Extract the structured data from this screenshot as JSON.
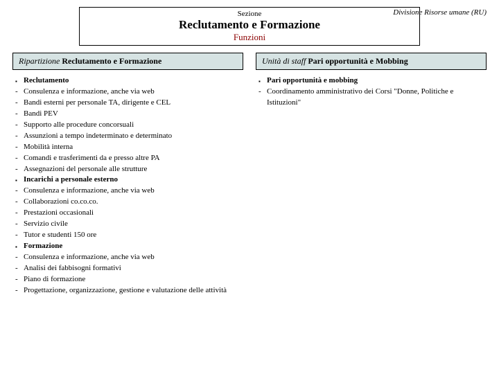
{
  "division_label": "Divisione Risorse umane (RU)",
  "header": {
    "supr": "Sezione",
    "main": "Reclutamento e Formazione",
    "sub": "Funzioni"
  },
  "colors": {
    "col_header_bg": "#d6e3e3",
    "sub_header_color": "#8b0000",
    "border": "#000000",
    "text": "#000000",
    "background": "#ffffff"
  },
  "left": {
    "title_prefix": "Ripartizione ",
    "title_bold": "Reclutamento e Formazione",
    "items": [
      {
        "type": "header",
        "text": "Reclutamento"
      },
      {
        "type": "sub",
        "text": "Consulenza e informazione, anche via web"
      },
      {
        "type": "sub",
        "text": "Bandi esterni per personale TA, dirigente e CEL"
      },
      {
        "type": "sub",
        "text": "Bandi PEV"
      },
      {
        "type": "sub",
        "text": "Supporto alle procedure concorsuali"
      },
      {
        "type": "sub",
        "text": "Assunzioni  a tempo indeterminato e determinato"
      },
      {
        "type": "sub",
        "text": "Mobilità interna"
      },
      {
        "type": "sub",
        "text": "Comandi e trasferimenti da e presso altre PA"
      },
      {
        "type": "sub",
        "text": "Assegnazioni del personale alle strutture"
      },
      {
        "type": "header",
        "text": "Incarichi a personale esterno"
      },
      {
        "type": "sub",
        "text": "Consulenza e informazione, anche via web"
      },
      {
        "type": "sub",
        "text": "Collaborazioni co.co.co."
      },
      {
        "type": "sub",
        "text": "Prestazioni occasionali"
      },
      {
        "type": "sub",
        "text": "Servizio civile"
      },
      {
        "type": "sub",
        "text": "Tutor e studenti 150 ore"
      },
      {
        "type": "header",
        "text": "Formazione"
      },
      {
        "type": "sub",
        "text": "Consulenza e informazione, anche via web"
      },
      {
        "type": "sub",
        "text": "Analisi dei fabbisogni formativi"
      },
      {
        "type": "sub",
        "text": "Piano di formazione"
      },
      {
        "type": "sub",
        "text": "Progettazione, organizzazione, gestione e valutazione delle attività"
      }
    ]
  },
  "right": {
    "title_prefix": "Unità di staff  ",
    "title_bold": "Pari opportunità e Mobbing",
    "items": [
      {
        "type": "header",
        "text": "Pari opportunità e mobbing"
      },
      {
        "type": "sub",
        "text": "Coordinamento amministrativo dei Corsi \"Donne, Politiche e Istituzioni\""
      }
    ]
  }
}
